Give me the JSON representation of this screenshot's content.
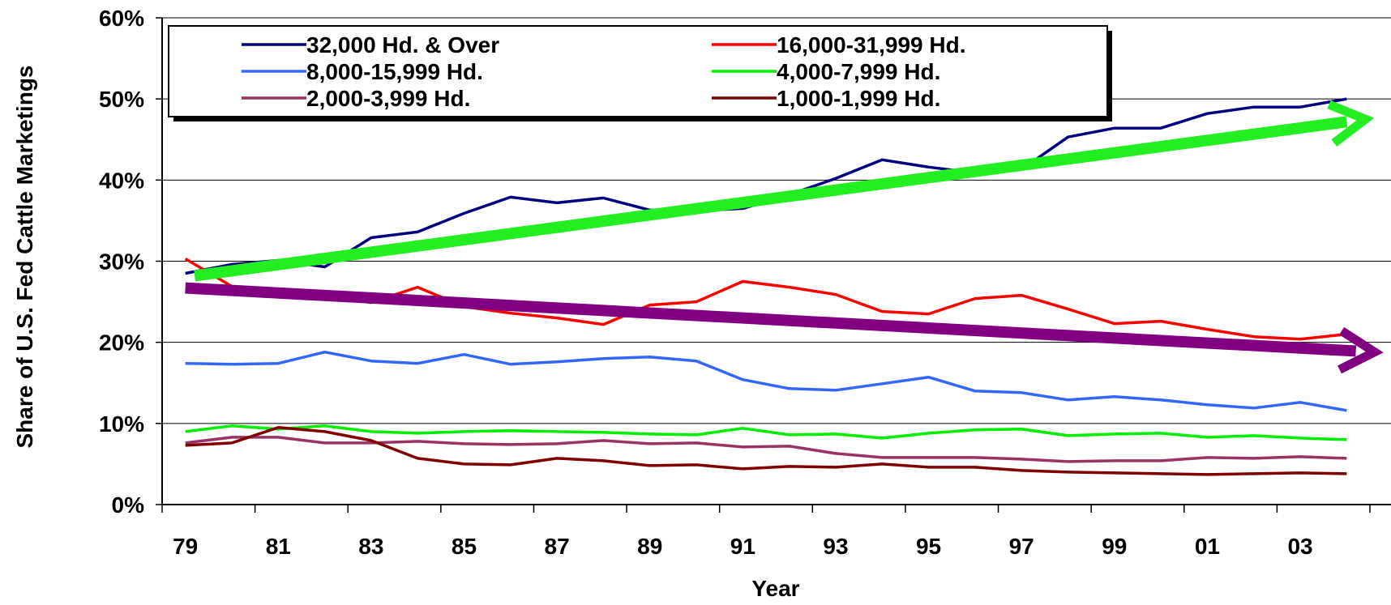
{
  "chart_data": {
    "type": "line",
    "xlabel": "Year",
    "ylabel": "Share of U.S. Fed Cattle Marketings",
    "x_ticks": [
      "79",
      "81",
      "83",
      "85",
      "87",
      "89",
      "91",
      "93",
      "95",
      "97",
      "99",
      "01",
      "03"
    ],
    "x_years": [
      1979,
      1980,
      1981,
      1982,
      1983,
      1984,
      1985,
      1986,
      1987,
      1988,
      1989,
      1990,
      1991,
      1992,
      1993,
      1994,
      1995,
      1996,
      1997,
      1998,
      1999,
      2000,
      2001,
      2002,
      2003,
      2004
    ],
    "y_ticks": [
      "0%",
      "10%",
      "20%",
      "30%",
      "40%",
      "50%",
      "60%"
    ],
    "ylim": [
      0,
      60
    ],
    "grid": "horizontal",
    "legend_position": "top-left",
    "series": [
      {
        "name": "32,000 Hd. & Over",
        "color": "#000080",
        "values": [
          28.5,
          29.6,
          30.1,
          29.3,
          32.9,
          33.6,
          35.9,
          37.9,
          37.2,
          37.8,
          36.3,
          36.2,
          36.5,
          38.2,
          40.2,
          42.5,
          41.6,
          40.9,
          41.3,
          45.3,
          46.4,
          46.4,
          48.2,
          49.0,
          49.0,
          50.0
        ]
      },
      {
        "name": "16,000-31,999 Hd.",
        "color": "#ff0000",
        "values": [
          30.3,
          26.9,
          25.6,
          25.8,
          24.9,
          26.8,
          24.4,
          23.6,
          23.0,
          22.2,
          24.6,
          25.0,
          27.5,
          26.8,
          25.9,
          23.8,
          23.5,
          25.4,
          25.8,
          24.1,
          22.3,
          22.6,
          21.6,
          20.7,
          20.4,
          21.0
        ]
      },
      {
        "name": "8,000-15,999 Hd.",
        "color": "#3366ff",
        "values": [
          17.4,
          17.3,
          17.4,
          18.8,
          17.7,
          17.4,
          18.5,
          17.3,
          17.6,
          18.0,
          18.2,
          17.7,
          15.4,
          14.3,
          14.1,
          14.9,
          15.7,
          14.0,
          13.8,
          12.9,
          13.3,
          12.9,
          12.3,
          11.9,
          12.6,
          11.6
        ]
      },
      {
        "name": "4,000-7,999 Hd.",
        "color": "#00ee00",
        "values": [
          9.0,
          9.7,
          9.3,
          9.7,
          9.0,
          8.8,
          9.0,
          9.1,
          9.0,
          8.9,
          8.7,
          8.6,
          9.4,
          8.6,
          8.7,
          8.2,
          8.8,
          9.2,
          9.3,
          8.5,
          8.7,
          8.8,
          8.3,
          8.5,
          8.2,
          8.0
        ]
      },
      {
        "name": "2,000-3,999 Hd.",
        "color": "#993366",
        "values": [
          7.6,
          8.3,
          8.3,
          7.6,
          7.6,
          7.8,
          7.5,
          7.4,
          7.5,
          7.9,
          7.5,
          7.6,
          7.1,
          7.2,
          6.3,
          5.8,
          5.8,
          5.8,
          5.6,
          5.3,
          5.4,
          5.4,
          5.8,
          5.7,
          5.9,
          5.7
        ]
      },
      {
        "name": "1,000-1,999 Hd.",
        "color": "#800000",
        "values": [
          7.3,
          7.6,
          9.5,
          9.0,
          7.9,
          5.7,
          5.0,
          4.9,
          5.7,
          5.4,
          4.8,
          4.9,
          4.4,
          4.7,
          4.6,
          5.0,
          4.6,
          4.6,
          4.2,
          4.0,
          3.9,
          3.8,
          3.7,
          3.8,
          3.9,
          3.8
        ]
      }
    ],
    "trend_arrows": [
      {
        "color": "#22ee22",
        "from": [
          1979.2,
          28.2
        ],
        "to": [
          2004.4,
          47.5
        ]
      },
      {
        "color": "#800080",
        "from": [
          1979.0,
          26.7
        ],
        "to": [
          2004.6,
          18.8
        ]
      }
    ]
  }
}
